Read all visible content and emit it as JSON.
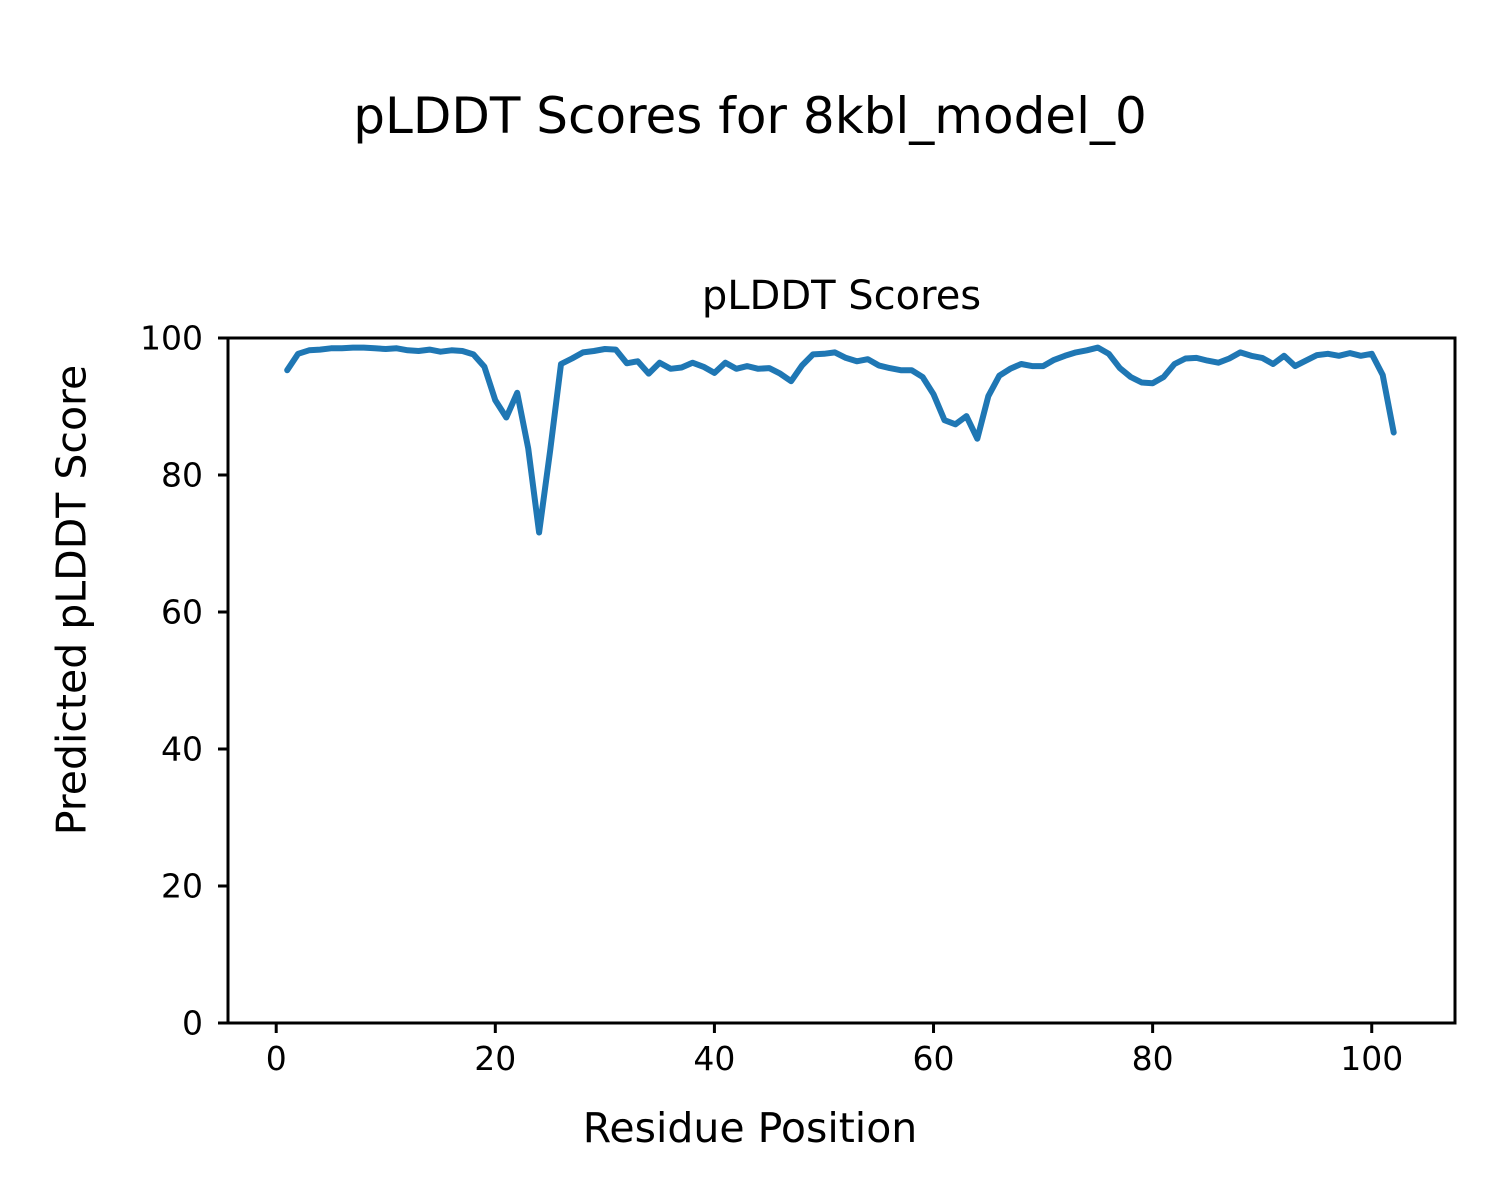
{
  "figure": {
    "suptitle": "pLDDT Scores for 8kbl_model_0",
    "background_color": "#ffffff",
    "text_color": "#000000"
  },
  "chart_data": {
    "type": "line",
    "title": "pLDDT Scores",
    "xlabel": "Residue Position",
    "ylabel": "Predicted pLDDT Score",
    "xlim": [
      -4.4,
      107.6
    ],
    "ylim": [
      0,
      100
    ],
    "xticks": [
      0,
      20,
      40,
      60,
      80,
      100
    ],
    "yticks": [
      0,
      20,
      40,
      60,
      80,
      100
    ],
    "grid": false,
    "legend": "none",
    "line_color": "#1f77b4",
    "axes_edge_color": "#000000",
    "series": [
      {
        "name": "pLDDT",
        "x": [
          1,
          2,
          3,
          4,
          5,
          6,
          7,
          8,
          9,
          10,
          11,
          12,
          13,
          14,
          15,
          16,
          17,
          18,
          19,
          20,
          21,
          22,
          23,
          24,
          25,
          26,
          27,
          28,
          29,
          30,
          31,
          32,
          33,
          34,
          35,
          36,
          37,
          38,
          39,
          40,
          41,
          42,
          43,
          44,
          45,
          46,
          47,
          48,
          49,
          50,
          51,
          52,
          53,
          54,
          55,
          56,
          57,
          58,
          59,
          60,
          61,
          62,
          63,
          64,
          65,
          66,
          67,
          68,
          69,
          70,
          71,
          72,
          73,
          74,
          75,
          76,
          77,
          78,
          79,
          80,
          81,
          82,
          83,
          84,
          85,
          86,
          87,
          88,
          89,
          90,
          91,
          92,
          93,
          94,
          95,
          96,
          97,
          98,
          99,
          100,
          101,
          102
        ],
        "y": [
          95.3,
          97.7,
          98.2,
          98.3,
          98.5,
          98.5,
          98.6,
          98.6,
          98.5,
          98.4,
          98.5,
          98.2,
          98.1,
          98.3,
          98.0,
          98.2,
          98.1,
          97.6,
          95.8,
          90.9,
          88.4,
          92.0,
          83.9,
          71.6,
          83.5,
          96.2,
          97.0,
          97.9,
          98.1,
          98.4,
          98.3,
          96.3,
          96.6,
          94.8,
          96.4,
          95.5,
          95.7,
          96.4,
          95.8,
          94.9,
          96.4,
          95.5,
          95.9,
          95.5,
          95.6,
          94.8,
          93.7,
          96.0,
          97.6,
          97.7,
          97.9,
          97.1,
          96.6,
          96.9,
          96.0,
          95.6,
          95.3,
          95.3,
          94.3,
          91.8,
          88.0,
          87.4,
          88.6,
          85.3,
          91.5,
          94.5,
          95.5,
          96.2,
          95.9,
          95.9,
          96.8,
          97.4,
          97.9,
          98.2,
          98.6,
          97.7,
          95.6,
          94.3,
          93.5,
          93.4,
          94.3,
          96.2,
          97.0,
          97.1,
          96.7,
          96.4,
          97.0,
          97.9,
          97.4,
          97.1,
          96.2,
          97.4,
          95.9,
          96.7,
          97.5,
          97.7,
          97.4,
          97.8,
          97.4,
          97.7,
          94.6,
          86.2
        ]
      }
    ]
  }
}
